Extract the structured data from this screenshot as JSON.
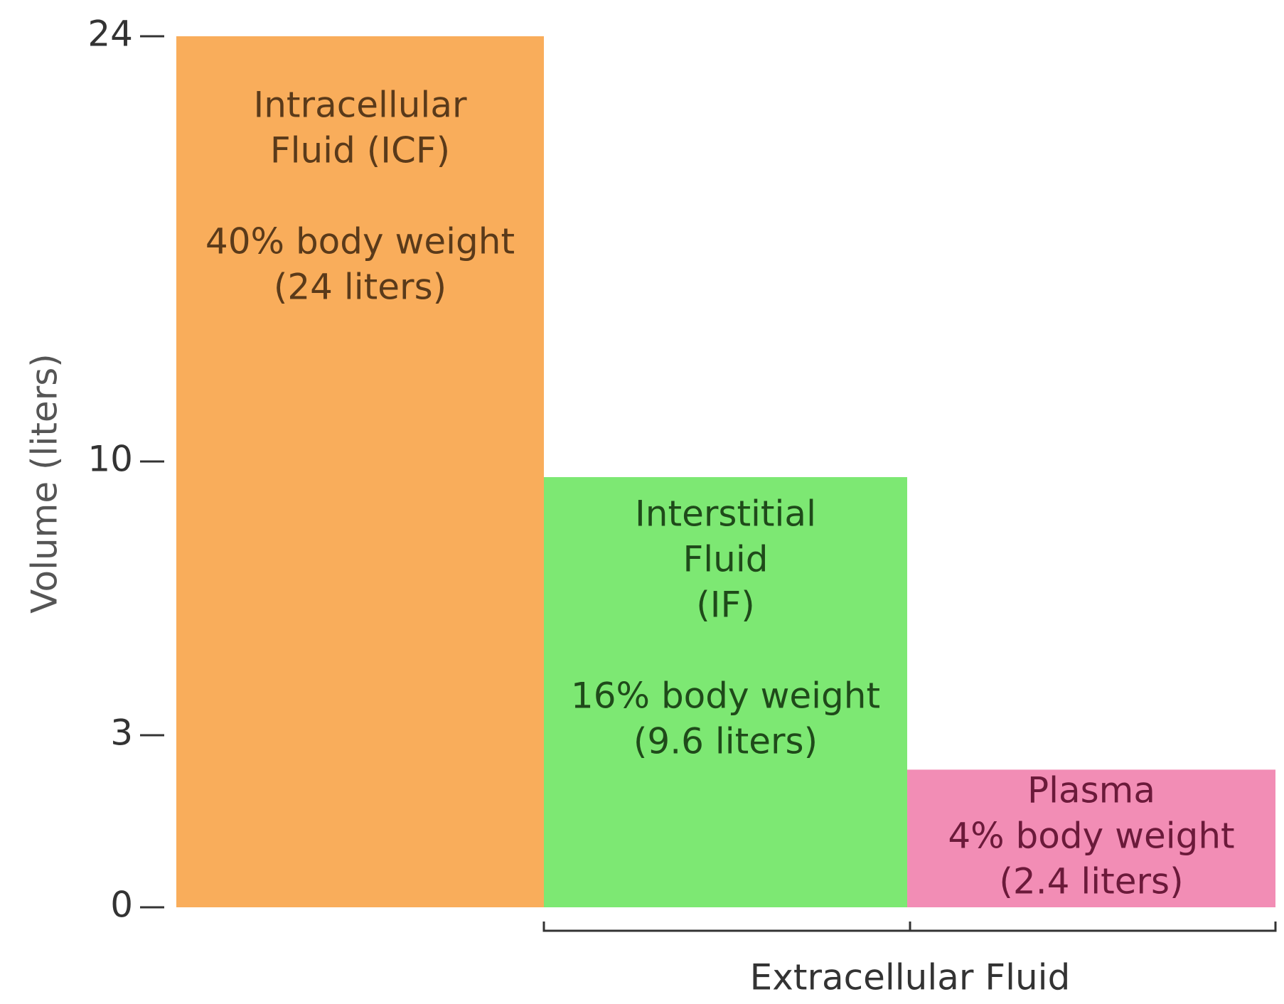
{
  "chart_data": {
    "type": "bar",
    "ylabel": "Volume (liters)",
    "categories": [
      [
        "Intracellular",
        "Fluid (ICF)"
      ],
      [
        "Interstitial",
        "Fluid",
        "(IF)"
      ],
      [
        "Plasma"
      ]
    ],
    "percent_labels": [
      "40% body weight",
      "16% body weight",
      "4% body weight"
    ],
    "values": [
      24,
      9.6,
      2.4
    ],
    "value_labels": [
      "(24 liters)",
      "(9.6 liters)",
      "(2.4 liters)"
    ],
    "colors": [
      "#f9ad5b",
      "#7de873",
      "#f28db5"
    ],
    "text_colors": [
      "#5a3a1a",
      "#1f4a1a",
      "#6b1a3a"
    ],
    "ylim": [
      0,
      24
    ],
    "yticks": [
      0,
      3,
      10,
      24
    ],
    "grid": false,
    "group_label": "Extracellular Fluid"
  }
}
